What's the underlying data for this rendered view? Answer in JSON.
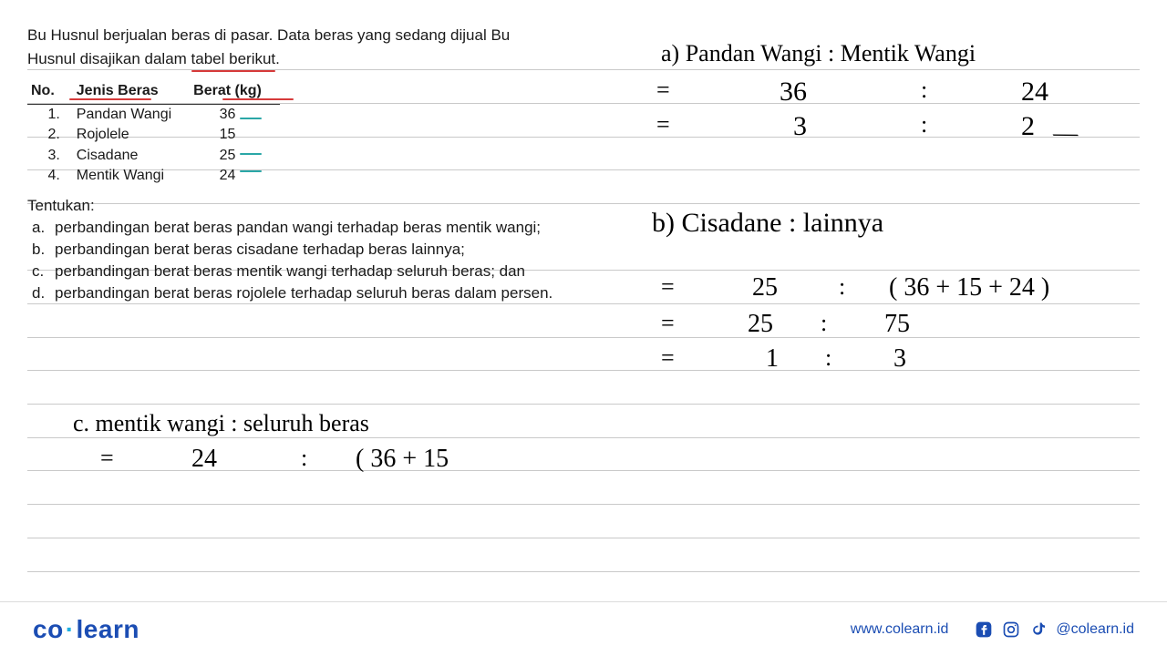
{
  "colors": {
    "text": "#1a1a1a",
    "line": "#c9c9c9",
    "red_underline": "#d63a3a",
    "teal_underline": "#2aa7a7",
    "brand_blue": "#1b4db3",
    "brand_cyan": "#1fb0e0",
    "handwriting": "#000000",
    "background": "#ffffff"
  },
  "ruled_lines_y": [
    76,
    113,
    150,
    186,
    223,
    296,
    333,
    370,
    406,
    443,
    480,
    516,
    553,
    590,
    627
  ],
  "problem": {
    "intro_line1": "Bu Husnul berjualan beras di pasar. Data beras yang sedang dijual Bu",
    "intro_line2_a": "Husnul disajikan dalam ",
    "intro_line2_underlined": "tabel berikut",
    "intro_line2_b": "."
  },
  "table": {
    "headers": [
      "No.",
      "Jenis Beras",
      "Berat (kg)"
    ],
    "rows": [
      [
        "1.",
        "Pandan Wangi",
        "36"
      ],
      [
        "2.",
        "Rojolele",
        "15"
      ],
      [
        "3.",
        "Cisadane",
        "25"
      ],
      [
        "4.",
        "Mentik Wangi",
        "24"
      ]
    ]
  },
  "questions": {
    "heading": "Tentukan:",
    "items": [
      {
        "letter": "a.",
        "text": "perbandingan berat beras pandan wangi terhadap beras mentik wangi;"
      },
      {
        "letter": "b.",
        "text": "perbandingan berat beras cisadane terhadap beras lainnya;"
      },
      {
        "letter": "c.",
        "text": "perbandingan berat beras mentik wangi terhadap seluruh beras; dan"
      },
      {
        "letter": "d.",
        "text": "perbandingan berat beras rojolele terhadap seluruh beras dalam persen."
      }
    ]
  },
  "handwriting": {
    "font": "Comic Sans MS",
    "a_label": "a) Pandan Wangi  :  Mentik Wangi",
    "a_eq": "=",
    "a_v1": "36",
    "a_c1": ":",
    "a_v2": "24",
    "a_eq2": "=",
    "a_v3": "3",
    "a_c2": ":",
    "a_v4": "2",
    "a_slash": "⁄",
    "b_label": "b)  Cisadane   :   lainnya",
    "b_eq": "=",
    "b_v1": "25",
    "b_c1": ":",
    "b_expr": "( 36 + 15 + 24 )",
    "b_eq2": "=",
    "b_v2": "25",
    "b_c2": ":",
    "b_v3": "75",
    "b_eq3": "=",
    "b_v4": "1",
    "b_c3": ":",
    "b_v5": "3",
    "c_label": "c.   mentik wangi   :   seluruh beras",
    "c_eq": "=",
    "c_v1": "24",
    "c_c1": ":",
    "c_expr": "( 36 + 15"
  },
  "footer": {
    "logo_left": "co",
    "logo_right": "learn",
    "url": "www.colearn.id",
    "handle": "@colearn.id"
  }
}
